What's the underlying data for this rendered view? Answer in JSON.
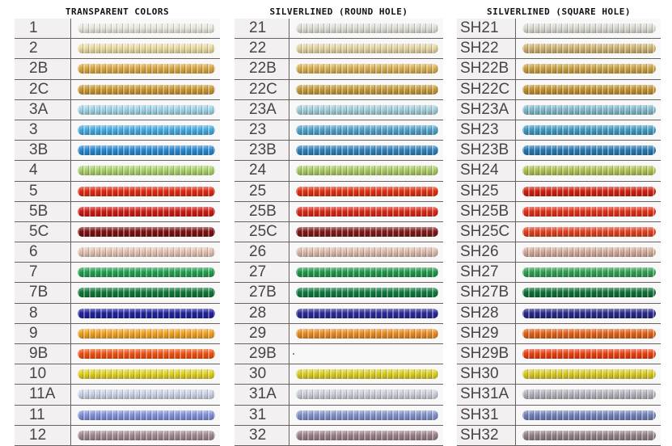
{
  "panels": [
    {
      "title": "TRANSPARENT COLORS",
      "rows": [
        {
          "label": "1",
          "color": "#e6e6dc"
        },
        {
          "label": "2",
          "color": "#e8d9a0"
        },
        {
          "label": "2B",
          "color": "#d9a640"
        },
        {
          "label": "2C",
          "color": "#c99530"
        },
        {
          "label": "3A",
          "color": "#9dd2e2"
        },
        {
          "label": "3",
          "color": "#45aae0"
        },
        {
          "label": "3B",
          "color": "#2a88d0"
        },
        {
          "label": "4",
          "color": "#a8d068"
        },
        {
          "label": "5",
          "color": "#e02a10"
        },
        {
          "label": "5B",
          "color": "#cc1a12"
        },
        {
          "label": "5C",
          "color": "#7c1010"
        },
        {
          "label": "6",
          "color": "#e0c0b0"
        },
        {
          "label": "7",
          "color": "#22a050"
        },
        {
          "label": "7B",
          "color": "#107838"
        },
        {
          "label": "8",
          "color": "#2222a0"
        },
        {
          "label": "9",
          "color": "#f0a020"
        },
        {
          "label": "9B",
          "color": "#f05212"
        },
        {
          "label": "10",
          "color": "#e0d020"
        },
        {
          "label": "11A",
          "color": "#c8d0e2"
        },
        {
          "label": "11",
          "color": "#8090d8"
        },
        {
          "label": "12",
          "color": "#a08890"
        }
      ]
    },
    {
      "title": "SILVERLINED (ROUND HOLE)",
      "rows": [
        {
          "label": "21",
          "color": "#dcdcd4"
        },
        {
          "label": "22",
          "color": "#e2d2a0"
        },
        {
          "label": "22B",
          "color": "#d6ae50"
        },
        {
          "label": "22C",
          "color": "#c39838"
        },
        {
          "label": "23A",
          "color": "#a0ccd8"
        },
        {
          "label": "23",
          "color": "#50a0c8"
        },
        {
          "label": "23B",
          "color": "#3080b8"
        },
        {
          "label": "24",
          "color": "#a8c860"
        },
        {
          "label": "25",
          "color": "#e03010"
        },
        {
          "label": "25B",
          "color": "#d82818"
        },
        {
          "label": "25C",
          "color": "#801818"
        },
        {
          "label": "26",
          "color": "#d8b8a8"
        },
        {
          "label": "27",
          "color": "#20984a"
        },
        {
          "label": "27B",
          "color": "#107a40"
        },
        {
          "label": "28",
          "color": "#2a2a98"
        },
        {
          "label": "29",
          "color": "#e88a20"
        },
        {
          "label": "29B",
          "color": ""
        },
        {
          "label": "30",
          "color": "#d8cc20"
        },
        {
          "label": "31A",
          "color": "#c8ccd4"
        },
        {
          "label": "31",
          "color": "#8090c8"
        },
        {
          "label": "32",
          "color": "#9a8088"
        }
      ]
    },
    {
      "title": "SILVERLINED (SQUARE HOLE)",
      "rows": [
        {
          "label": "SH21",
          "color": "#d8d8d0"
        },
        {
          "label": "SH22",
          "color": "#ccb070"
        },
        {
          "label": "SH22B",
          "color": "#c8a040"
        },
        {
          "label": "SH22C",
          "color": "#c09030"
        },
        {
          "label": "SH23A",
          "color": "#80b8c8"
        },
        {
          "label": "SH23",
          "color": "#4098c0"
        },
        {
          "label": "SH23B",
          "color": "#2878b0"
        },
        {
          "label": "SH24",
          "color": "#b0c050"
        },
        {
          "label": "SH25",
          "color": "#d02010"
        },
        {
          "label": "SH25B",
          "color": "#e03018"
        },
        {
          "label": "SH25C",
          "color": "#e04020"
        },
        {
          "label": "SH26",
          "color": "#d0a898"
        },
        {
          "label": "SH27",
          "color": "#30a050"
        },
        {
          "label": "SH27B",
          "color": "#107038"
        },
        {
          "label": "SH28",
          "color": "#28288a"
        },
        {
          "label": "SH29",
          "color": "#e06018"
        },
        {
          "label": "SH29B",
          "color": "#e84010"
        },
        {
          "label": "SH30",
          "color": "#d8c820"
        },
        {
          "label": "SH31A",
          "color": "#b0b0b8"
        },
        {
          "label": "SH31",
          "color": "#7080b8"
        },
        {
          "label": "SH32",
          "color": "#908088"
        }
      ]
    }
  ]
}
